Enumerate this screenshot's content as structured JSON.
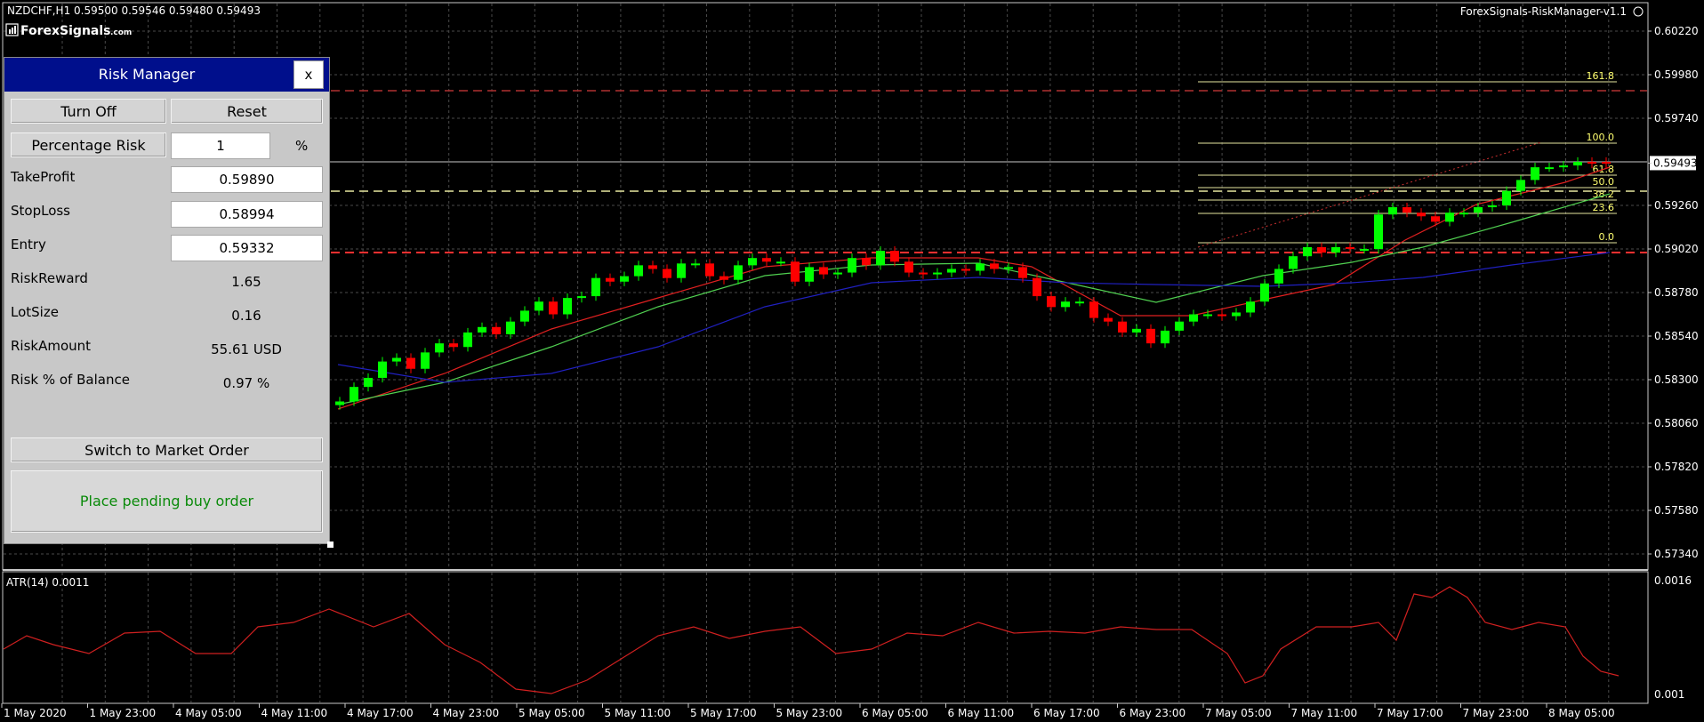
{
  "header": {
    "symbol_info": "NZDCHF,H1  0.59500 0.59546 0.59480 0.59493",
    "brand": "ForexSignals",
    "brand_suffix": ".com",
    "indicator_name": "ForexSignals-RiskManager-v1.1"
  },
  "price_axis": {
    "labels": [
      "0.60220",
      "0.59980",
      "0.59740",
      "0.59493",
      "0.59260",
      "0.59020",
      "0.58780",
      "0.58540",
      "0.58300",
      "0.58060",
      "0.57820",
      "0.57580",
      "0.57340"
    ],
    "current_price": "0.59493"
  },
  "fibonacci": [
    "161.8",
    "100.0",
    "61.8",
    "50.0",
    "38.2",
    "23.6",
    "0.0"
  ],
  "atr": {
    "title": "ATR(14) 0.0011",
    "scale_top": "0.0016",
    "scale_bottom": "0.001",
    "color": "#d02020"
  },
  "time_axis": [
    "1 May 2020",
    "1 May 23:00",
    "4 May 05:00",
    "4 May 11:00",
    "4 May 17:00",
    "4 May 23:00",
    "5 May 05:00",
    "5 May 11:00",
    "5 May 17:00",
    "5 May 23:00",
    "6 May 05:00",
    "6 May 11:00",
    "6 May 17:00",
    "6 May 23:00",
    "7 May 05:00",
    "7 May 11:00",
    "7 May 17:00",
    "7 May 23:00",
    "8 May 05:00"
  ],
  "colors": {
    "bull": "#00ff00",
    "bear": "#ff0000",
    "panel_title": "#000f8c",
    "take_profit_line": "#ff3030",
    "entry_line": "#e8e8a0"
  },
  "risk_manager": {
    "title": "Risk Manager",
    "close_label": "x",
    "turn_off": "Turn Off",
    "reset": "Reset",
    "percentage_risk_label": "Percentage Risk",
    "percentage_risk_value": "1",
    "percent_symbol": "%",
    "take_profit_label": "TakeProfit",
    "take_profit_value": "0.59890",
    "stop_loss_label": "StopLoss",
    "stop_loss_value": "0.58994",
    "entry_label": "Entry",
    "entry_value": "0.59332",
    "risk_reward_label": "RiskReward",
    "risk_reward_value": "1.65",
    "lot_size_label": "LotSize",
    "lot_size_value": "0.16",
    "risk_amount_label": "RiskAmount",
    "risk_amount_value": "55.61 USD",
    "risk_balance_label": "Risk % of Balance",
    "risk_balance_value": "0.97 %",
    "switch_button": "Switch to Market Order",
    "place_order": "Place pending buy order"
  }
}
